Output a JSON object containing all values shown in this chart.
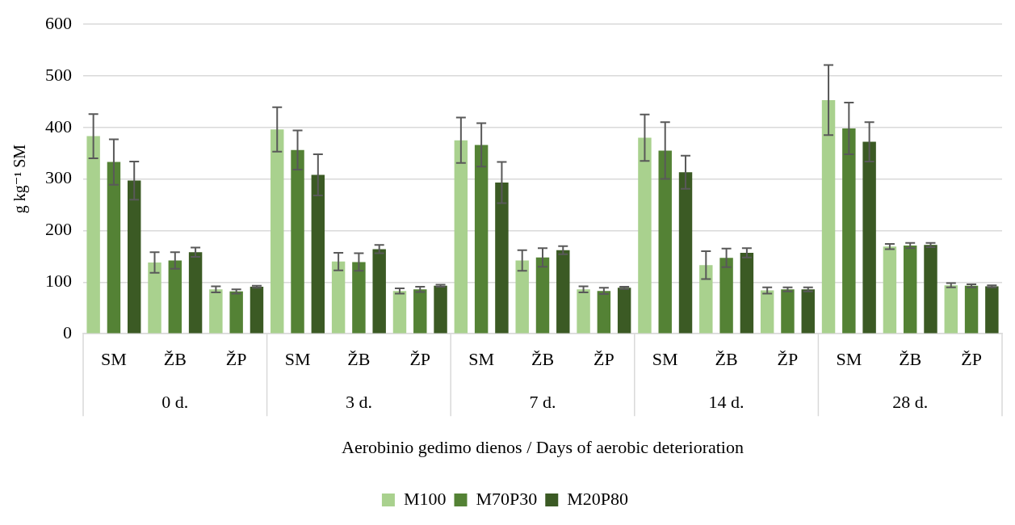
{
  "chart_data": {
    "type": "bar",
    "xlabel": "Aerobinio gedimo dienos / Days of aerobic deterioration",
    "ylabel": "g kg⁻¹ SM",
    "categories": [
      "SM",
      "ŽB",
      "ŽP",
      "SM",
      "ŽB",
      "ŽP",
      "SM",
      "ŽB",
      "ŽP",
      "SM",
      "ŽB",
      "ŽP",
      "SM",
      "ŽB",
      "ŽP"
    ],
    "annotations": [
      "0 d.",
      "3 d.",
      "7 d.",
      "14 d.",
      "28 d."
    ],
    "series": [
      {
        "name": "M100",
        "color": "#a9d18e",
        "values": [
          383,
          138,
          86,
          396,
          140,
          83,
          375,
          142,
          86,
          380,
          133,
          84,
          453,
          169,
          94
        ],
        "errors": [
          43,
          20,
          6,
          43,
          17,
          5,
          44,
          20,
          6,
          45,
          27,
          6,
          68,
          5,
          4
        ]
      },
      {
        "name": "M70P30",
        "color": "#548235",
        "values": [
          333,
          142,
          82,
          356,
          139,
          86,
          366,
          148,
          83,
          355,
          147,
          86,
          398,
          171,
          93
        ],
        "errors": [
          44,
          16,
          4,
          38,
          17,
          5,
          42,
          18,
          6,
          55,
          18,
          4,
          50,
          5,
          3
        ]
      },
      {
        "name": "M20P80",
        "color": "#3b5a24",
        "values": [
          297,
          158,
          91,
          308,
          164,
          93,
          293,
          162,
          89,
          313,
          157,
          86,
          372,
          172,
          92
        ],
        "errors": [
          37,
          9,
          2,
          40,
          8,
          2,
          40,
          8,
          2,
          32,
          9,
          4,
          38,
          4,
          2
        ]
      }
    ],
    "ylim": [
      0,
      600
    ],
    "yticks": [
      0,
      100,
      200,
      300,
      400,
      500,
      600
    ],
    "grid": "y",
    "legend": "bottom"
  }
}
